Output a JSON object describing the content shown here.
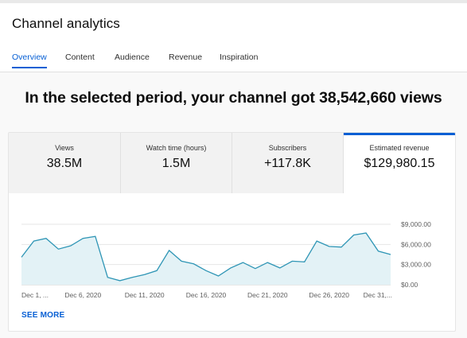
{
  "page": {
    "title": "Channel analytics"
  },
  "tabs": [
    {
      "label": "Overview",
      "active": true
    },
    {
      "label": "Content"
    },
    {
      "label": "Audience"
    },
    {
      "label": "Revenue"
    },
    {
      "label": "Inspiration"
    }
  ],
  "headline": "In the selected period, your channel got 38,542,660 views",
  "metrics": [
    {
      "label": "Views",
      "value": "38.5M"
    },
    {
      "label": "Watch time (hours)",
      "value": "1.5M"
    },
    {
      "label": "Subscribers",
      "value": "+117.8K"
    },
    {
      "label": "Estimated revenue",
      "value": "$129,980.15",
      "selected": true
    }
  ],
  "see_more": "SEE MORE",
  "colors": {
    "accent": "#065fd4",
    "line": "#2e95b5",
    "fill": "#e3f2f6"
  },
  "chart_data": {
    "type": "area",
    "x": [
      "Dec 1",
      "Dec 2",
      "Dec 3",
      "Dec 4",
      "Dec 5",
      "Dec 6",
      "Dec 7",
      "Dec 8",
      "Dec 9",
      "Dec 10",
      "Dec 11",
      "Dec 12",
      "Dec 13",
      "Dec 14",
      "Dec 15",
      "Dec 16",
      "Dec 17",
      "Dec 18",
      "Dec 19",
      "Dec 20",
      "Dec 21",
      "Dec 22",
      "Dec 23",
      "Dec 24",
      "Dec 25",
      "Dec 26",
      "Dec 27",
      "Dec 28",
      "Dec 29",
      "Dec 30",
      "Dec 31"
    ],
    "series": [
      {
        "values": [
          4100,
          6500,
          6900,
          5300,
          5800,
          6900,
          7200,
          1100,
          600,
          1100,
          1500,
          2100,
          5100,
          3500,
          3100,
          2100,
          1300,
          2500,
          3300,
          2400,
          3300,
          2500,
          3500,
          3400,
          6500,
          5700,
          5600,
          7400,
          7700,
          5000,
          4500
        ]
      }
    ],
    "ylim": [
      0,
      9000
    ],
    "yticks": [
      "$0.00",
      "$3,000.00",
      "$6,000.00",
      "$9,000.00"
    ],
    "ytick_values": [
      0,
      3000,
      6000,
      9000
    ],
    "xtick_labels": [
      "Dec 1, ...",
      "Dec 6, 2020",
      "Dec 11, 2020",
      "Dec 16, 2020",
      "Dec 21, 2020",
      "Dec 26, 2020",
      "Dec 31,..."
    ],
    "xtick_indices": [
      0,
      5,
      10,
      15,
      20,
      25,
      30
    ],
    "grid": true
  }
}
